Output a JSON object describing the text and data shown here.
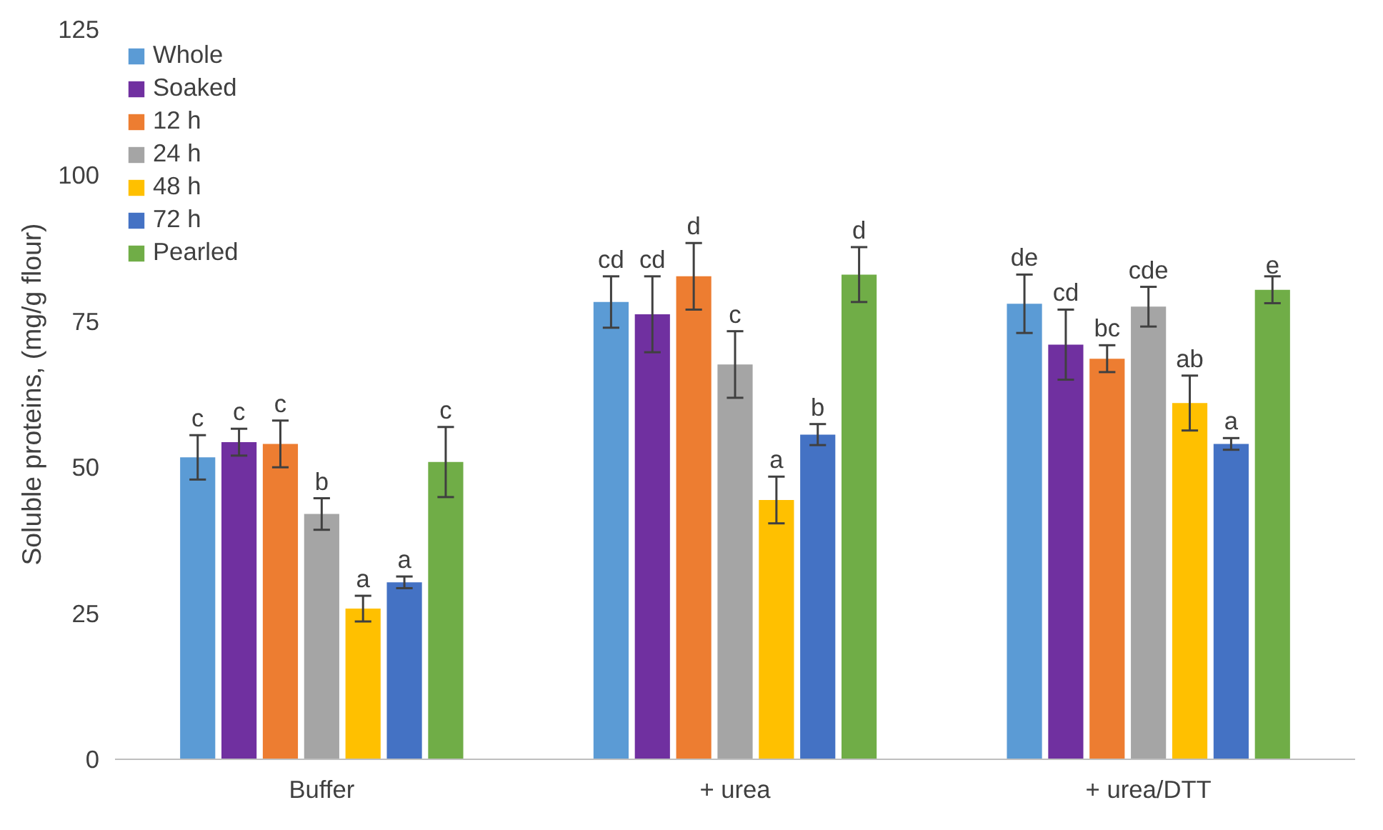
{
  "chart_data": {
    "type": "bar",
    "ylabel": "Soluble proteins, (mg/g flour)",
    "categories": [
      "Buffer",
      "+ urea",
      "+ urea/DTT"
    ],
    "ylim": [
      0,
      125
    ],
    "yticks": [
      0,
      25,
      50,
      75,
      100,
      125
    ],
    "grid": false,
    "legend": "top left",
    "series": [
      {
        "name": "Whole",
        "color": "#5b9bd5",
        "values": [
          51.7,
          78.3,
          78.0
        ],
        "errors": [
          3.8,
          4.4,
          5.0
        ],
        "value_labels": [
          "c",
          "cd",
          "de"
        ]
      },
      {
        "name": "Soaked",
        "color": "#7030a0",
        "values": [
          54.3,
          76.2,
          71.0
        ],
        "errors": [
          2.3,
          6.5,
          6.0
        ],
        "value_labels": [
          "c",
          "cd",
          "cd"
        ]
      },
      {
        "name": "12 h",
        "color": "#ed7d31",
        "values": [
          54.0,
          82.7,
          68.6
        ],
        "errors": [
          4.0,
          5.7,
          2.3
        ],
        "value_labels": [
          "c",
          "d",
          "bc"
        ]
      },
      {
        "name": "24 h",
        "color": "#a5a5a5",
        "values": [
          42.0,
          67.6,
          77.5
        ],
        "errors": [
          2.7,
          5.7,
          3.4
        ],
        "value_labels": [
          "b",
          "c",
          "cde"
        ]
      },
      {
        "name": "48 h",
        "color": "#ffc000",
        "values": [
          25.8,
          44.4,
          61.0
        ],
        "errors": [
          2.2,
          4.0,
          4.7
        ],
        "value_labels": [
          "a",
          "a",
          "ab"
        ]
      },
      {
        "name": "72 h",
        "color": "#4472c4",
        "values": [
          30.3,
          55.6,
          54.0
        ],
        "errors": [
          1.0,
          1.8,
          1.0
        ],
        "value_labels": [
          "a",
          "b",
          "a"
        ]
      },
      {
        "name": "Pearled",
        "color": "#70ad47",
        "values": [
          50.9,
          83.0,
          80.4
        ],
        "errors": [
          6.0,
          4.7,
          2.3
        ],
        "value_labels": [
          "c",
          "d",
          "e"
        ]
      }
    ]
  }
}
